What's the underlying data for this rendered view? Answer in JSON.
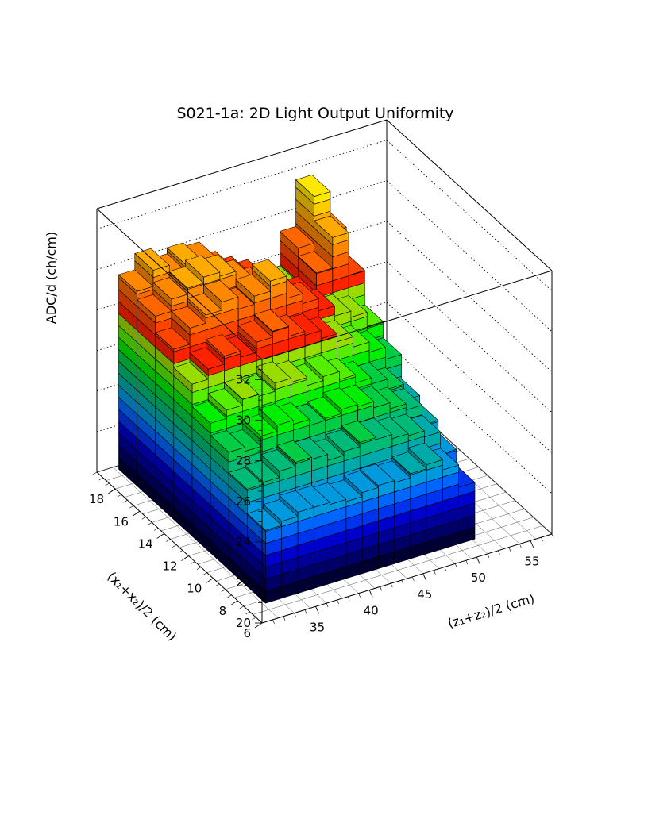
{
  "chart_data": {
    "type": "lego3d",
    "title": "S021-1a: 2D Light Output Uniformity",
    "xlabel": "(z₁+z₂)/2 (cm)",
    "ylabel": "(x₁+x₂)/2 (cm)",
    "zlabel": "ADC/d (ch/cm)",
    "xlim": [
      30,
      57
    ],
    "ylim": [
      6,
      19.5
    ],
    "zlim": [
      20,
      33
    ],
    "x_ticks": [
      "35",
      "40",
      "45",
      "50",
      "55"
    ],
    "y_ticks": [
      "6",
      "8",
      "10",
      "12",
      "14",
      "16",
      "18"
    ],
    "z_ticks": [
      "20",
      "22",
      "24",
      "26",
      "28",
      "30",
      "32"
    ],
    "grid": true,
    "x_bin_centers": [
      32.5,
      34.0,
      35.5,
      37.0,
      38.5,
      40.0,
      41.5,
      43.0,
      44.5,
      46.0,
      47.5,
      49.0,
      50.5
    ],
    "y_bin_centers": [
      8.0,
      9.5,
      11.0,
      12.5,
      14.0,
      15.5,
      17.0,
      18.5
    ],
    "values": [
      [
        23.6,
        23.8,
        24.0,
        24.0,
        23.9,
        23.8,
        24.0,
        24.1,
        24.0,
        24.2,
        24.4,
        23.9,
        22.8
      ],
      [
        24.8,
        24.9,
        25.2,
        25.4,
        25.3,
        25.0,
        25.2,
        25.4,
        25.3,
        25.1,
        25.0,
        24.7,
        23.6
      ],
      [
        25.8,
        25.6,
        26.1,
        26.4,
        26.2,
        25.9,
        26.0,
        26.2,
        26.1,
        25.8,
        25.5,
        25.2,
        24.2
      ],
      [
        26.4,
        26.8,
        27.1,
        27.0,
        27.4,
        27.2,
        26.8,
        27.0,
        26.6,
        26.2,
        25.9,
        25.4,
        24.6
      ],
      [
        27.5,
        28.0,
        28.4,
        28.1,
        28.6,
        28.9,
        28.4,
        28.2,
        27.8,
        27.4,
        26.9,
        26.4,
        25.8
      ],
      [
        28.4,
        29.2,
        29.6,
        30.0,
        29.4,
        29.8,
        30.3,
        29.2,
        28.7,
        28.1,
        27.6,
        27.3,
        26.6
      ],
      [
        29.2,
        29.8,
        30.1,
        30.4,
        30.2,
        29.7,
        29.1,
        28.6,
        28.2,
        27.9,
        28.9,
        30.4,
        28.3
      ],
      [
        29.6,
        30.4,
        29.9,
        30.2,
        30.0,
        29.3,
        28.8,
        28.4,
        27.9,
        27.6,
        29.3,
        31.6,
        29.6
      ]
    ],
    "palette": [
      "#000033",
      "#000066",
      "#000099",
      "#0000cc",
      "#0033ee",
      "#0066ff",
      "#0099dd",
      "#00aaaa",
      "#00bb77",
      "#00cc44",
      "#00ee00",
      "#55ee00",
      "#99dd00",
      "#ff2200",
      "#ff4400",
      "#ff6600",
      "#ff8800",
      "#ffaa00",
      "#ffcc00",
      "#ffe800",
      "#ffff66",
      "#ffffee"
    ]
  }
}
